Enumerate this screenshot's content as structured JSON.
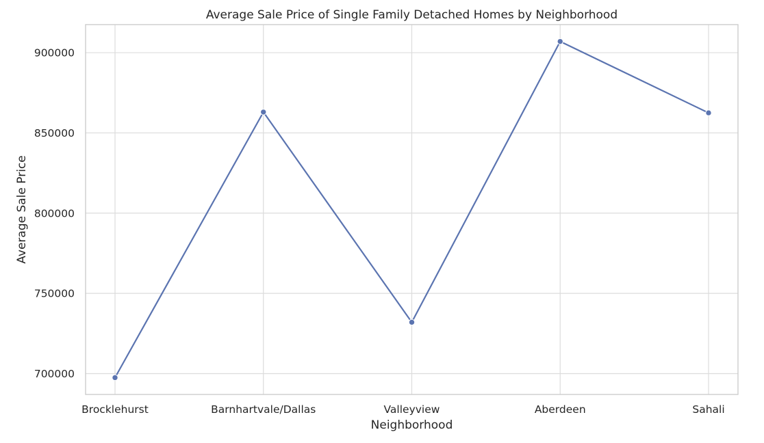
{
  "chart_data": {
    "type": "line",
    "title": "Average Sale Price of Single Family Detached Homes by Neighborhood",
    "xlabel": "Neighborhood",
    "ylabel": "Average Sale Price",
    "categories": [
      "Brocklehurst",
      "Barnhartvale/Dallas",
      "Valleyview",
      "Aberdeen",
      "Sahali"
    ],
    "series": [
      {
        "values": [
          697500,
          863000,
          732000,
          907000,
          862500
        ],
        "color": "#5b74b0",
        "marker": "circle"
      }
    ],
    "yticks": [
      700000,
      750000,
      800000,
      850000,
      900000
    ],
    "ytick_labels": [
      "700000",
      "750000",
      "800000",
      "850000",
      "900000"
    ],
    "ylim": [
      687000,
      917500
    ],
    "grid": true,
    "legend": "none"
  }
}
